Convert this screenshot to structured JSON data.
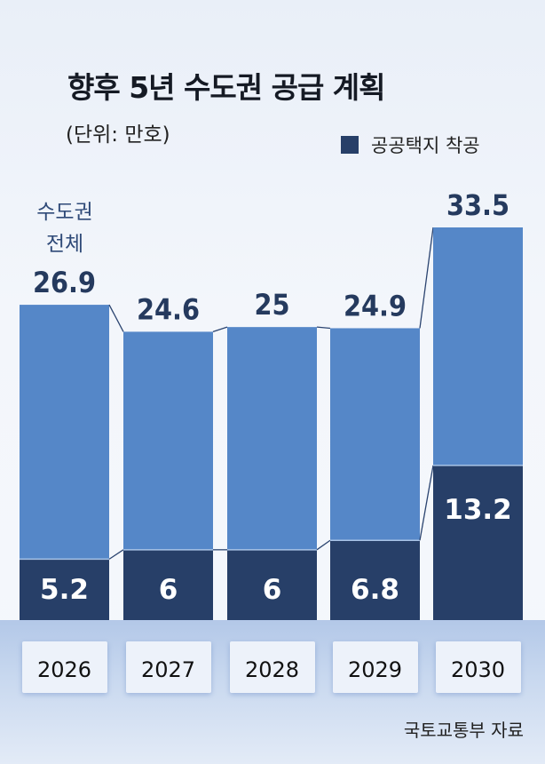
{
  "chart_data": {
    "type": "bar",
    "title": "향후 5년 수도권 공급 계획",
    "unit_label": "(단위: 만호)",
    "categories": [
      "2026",
      "2027",
      "2028",
      "2029",
      "2030"
    ],
    "series": [
      {
        "name": "수도권 전체",
        "values": [
          26.9,
          24.6,
          25,
          24.9,
          33.5
        ],
        "color": "#5587c8"
      },
      {
        "name": "공공택지 착공",
        "values": [
          5.2,
          6,
          6,
          6.8,
          13.2
        ],
        "color": "#273f68"
      }
    ],
    "total_label": [
      "수도권",
      "전체"
    ],
    "legend": "공공택지 착공",
    "legend_position": "top-right",
    "source": "국토교통부 자료",
    "ylim": [
      0,
      33.5
    ]
  }
}
